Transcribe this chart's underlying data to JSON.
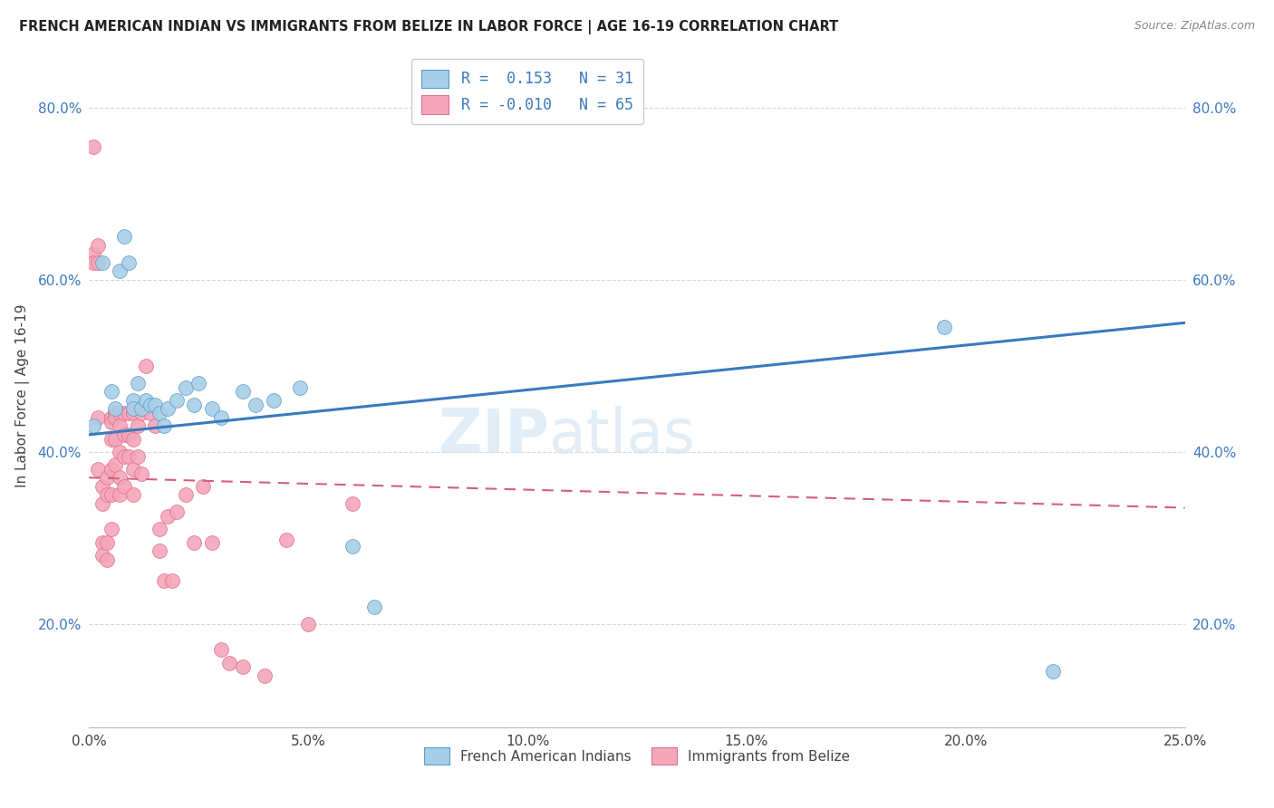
{
  "title": "FRENCH AMERICAN INDIAN VS IMMIGRANTS FROM BELIZE IN LABOR FORCE | AGE 16-19 CORRELATION CHART",
  "source": "Source: ZipAtlas.com",
  "ylabel": "In Labor Force | Age 16-19",
  "xmin": 0.0,
  "xmax": 0.25,
  "ymin": 0.08,
  "ymax": 0.85,
  "watermark_zip": "ZIP",
  "watermark_atlas": "atlas",
  "legend_blue_r": "0.153",
  "legend_blue_n": "31",
  "legend_pink_r": "-0.010",
  "legend_pink_n": "65",
  "legend_label1": "French American Indians",
  "legend_label2": "Immigrants from Belize",
  "blue_color": "#a8cfe8",
  "pink_color": "#f4a7b9",
  "blue_edge_color": "#5b9dc9",
  "pink_edge_color": "#e07090",
  "blue_line_color": "#3a7abf",
  "pink_line_color": "#d45f7a",
  "blue_scatter_x": [
    0.001,
    0.003,
    0.005,
    0.006,
    0.007,
    0.008,
    0.009,
    0.01,
    0.01,
    0.011,
    0.012,
    0.013,
    0.014,
    0.015,
    0.016,
    0.017,
    0.018,
    0.02,
    0.022,
    0.024,
    0.025,
    0.028,
    0.03,
    0.035,
    0.038,
    0.042,
    0.048,
    0.06,
    0.065,
    0.195,
    0.22
  ],
  "blue_scatter_y": [
    0.43,
    0.62,
    0.47,
    0.45,
    0.61,
    0.65,
    0.62,
    0.46,
    0.45,
    0.48,
    0.45,
    0.46,
    0.455,
    0.455,
    0.445,
    0.43,
    0.45,
    0.46,
    0.475,
    0.455,
    0.48,
    0.45,
    0.44,
    0.47,
    0.455,
    0.46,
    0.475,
    0.29,
    0.22,
    0.545,
    0.145
  ],
  "pink_scatter_x": [
    0.001,
    0.001,
    0.001,
    0.002,
    0.002,
    0.002,
    0.002,
    0.003,
    0.003,
    0.003,
    0.003,
    0.004,
    0.004,
    0.004,
    0.004,
    0.005,
    0.005,
    0.005,
    0.005,
    0.005,
    0.005,
    0.006,
    0.006,
    0.006,
    0.006,
    0.007,
    0.007,
    0.007,
    0.007,
    0.007,
    0.008,
    0.008,
    0.008,
    0.008,
    0.009,
    0.009,
    0.009,
    0.01,
    0.01,
    0.01,
    0.01,
    0.011,
    0.011,
    0.012,
    0.012,
    0.013,
    0.014,
    0.015,
    0.016,
    0.016,
    0.017,
    0.018,
    0.019,
    0.02,
    0.022,
    0.024,
    0.026,
    0.028,
    0.03,
    0.032,
    0.035,
    0.04,
    0.045,
    0.05,
    0.06
  ],
  "pink_scatter_y": [
    0.755,
    0.63,
    0.62,
    0.64,
    0.62,
    0.44,
    0.38,
    0.36,
    0.34,
    0.295,
    0.28,
    0.37,
    0.35,
    0.295,
    0.275,
    0.44,
    0.435,
    0.415,
    0.38,
    0.35,
    0.31,
    0.445,
    0.44,
    0.415,
    0.385,
    0.445,
    0.43,
    0.4,
    0.37,
    0.35,
    0.445,
    0.42,
    0.395,
    0.36,
    0.445,
    0.42,
    0.395,
    0.445,
    0.415,
    0.38,
    0.35,
    0.43,
    0.395,
    0.445,
    0.375,
    0.5,
    0.445,
    0.43,
    0.31,
    0.285,
    0.25,
    0.325,
    0.25,
    0.33,
    0.35,
    0.295,
    0.36,
    0.295,
    0.17,
    0.155,
    0.15,
    0.14,
    0.298,
    0.2,
    0.34
  ],
  "xticks": [
    0.0,
    0.05,
    0.1,
    0.15,
    0.2,
    0.25
  ],
  "xtick_labels": [
    "0.0%",
    "5.0%",
    "10.0%",
    "15.0%",
    "20.0%",
    "25.0%"
  ],
  "yticks": [
    0.2,
    0.4,
    0.6,
    0.8
  ],
  "ytick_labels": [
    "20.0%",
    "40.0%",
    "60.0%",
    "80.0%"
  ],
  "bg_color": "#ffffff",
  "grid_color": "#c8c8c8",
  "blue_trend_x0": 0.0,
  "blue_trend_y0": 0.42,
  "blue_trend_x1": 0.25,
  "blue_trend_y1": 0.55,
  "pink_trend_x0": 0.0,
  "pink_trend_y0": 0.37,
  "pink_trend_x1": 0.25,
  "pink_trend_y1": 0.335
}
